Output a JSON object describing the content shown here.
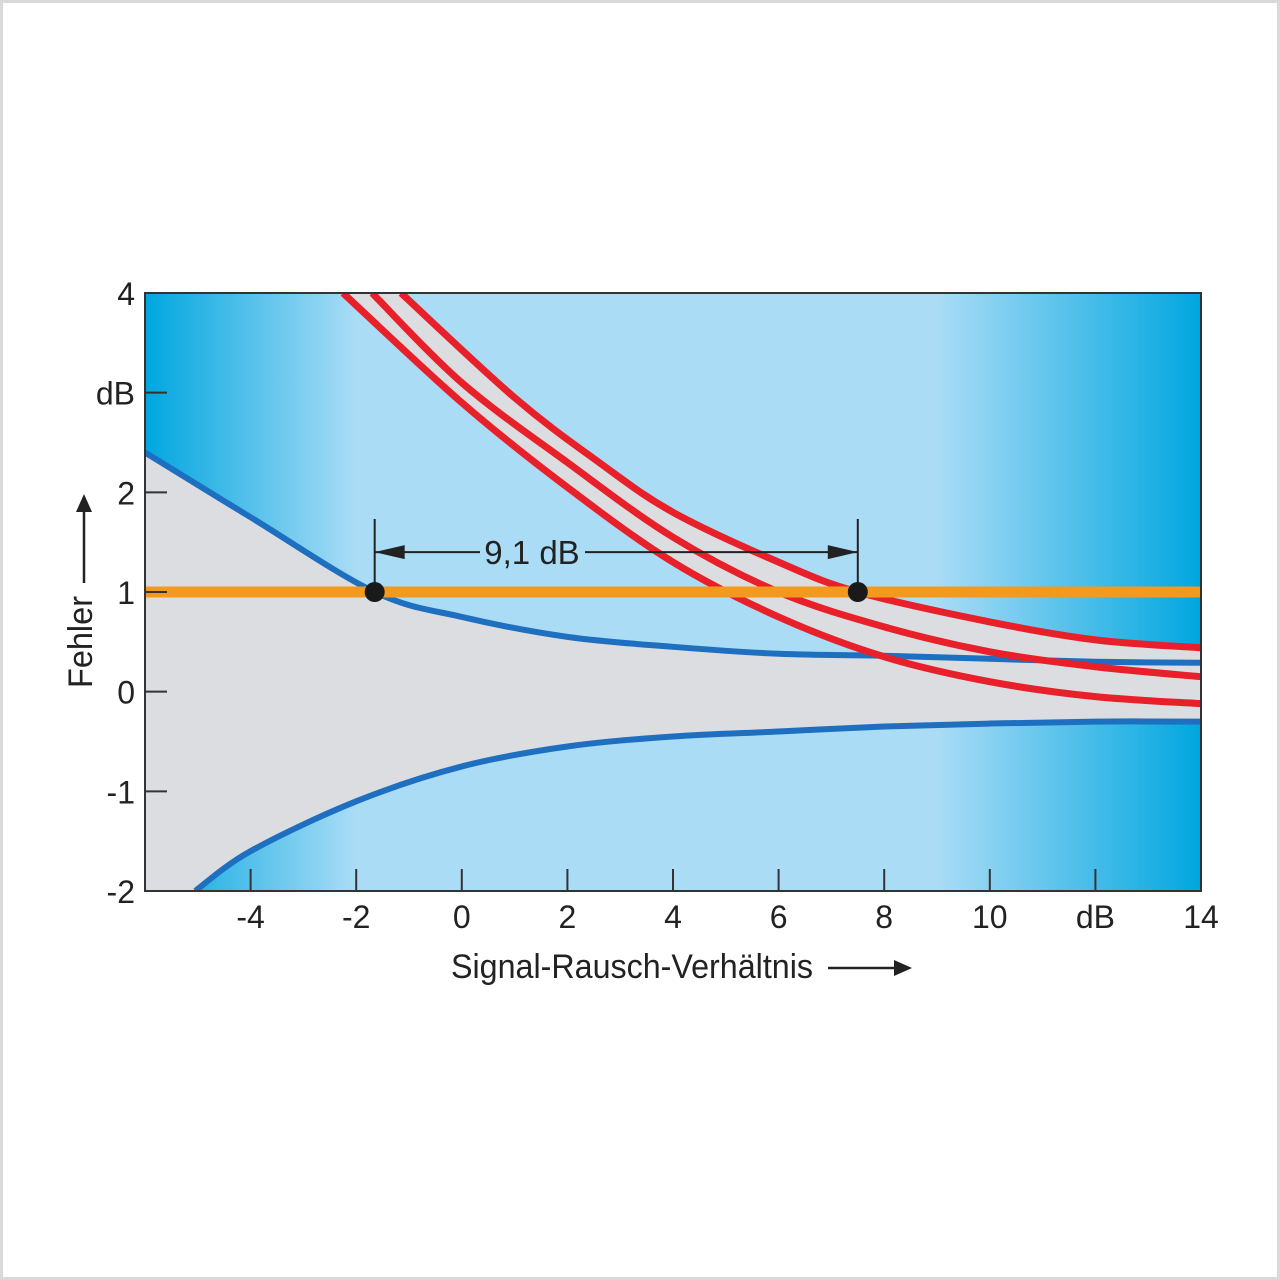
{
  "chart_data": {
    "type": "line",
    "title": "",
    "xlabel": "Signal-Rausch-Verhältnis",
    "ylabel": "Fehler",
    "xlim": [
      -6,
      14
    ],
    "ylim": [
      -2,
      4
    ],
    "x_ticks": [
      {
        "value": -4,
        "label": "-4"
      },
      {
        "value": -2,
        "label": "-2"
      },
      {
        "value": 0,
        "label": "0"
      },
      {
        "value": 2,
        "label": "2"
      },
      {
        "value": 4,
        "label": "4"
      },
      {
        "value": 6,
        "label": "6"
      },
      {
        "value": 8,
        "label": "8"
      },
      {
        "value": 10,
        "label": "10"
      },
      {
        "value": 12,
        "label": "dB"
      },
      {
        "value": 14,
        "label": "14"
      }
    ],
    "y_ticks": [
      {
        "value": 4,
        "label": "4"
      },
      {
        "value": 3,
        "label": "dB"
      },
      {
        "value": 2,
        "label": "2"
      },
      {
        "value": 1,
        "label": "1"
      },
      {
        "value": 0,
        "label": "0"
      },
      {
        "value": -1,
        "label": "-1"
      },
      {
        "value": -2,
        "label": "-2"
      }
    ],
    "grid": false,
    "colors": {
      "background_edge": "#00a6df",
      "background_center": "#aadcf6",
      "band": "#dcdde0",
      "blue": "#1f6fc0",
      "red": "#e8202a",
      "orange": "#f39a1e",
      "marker": "#1a1a1a"
    },
    "series": [
      {
        "role": "blue-upper",
        "color": "#1f6fc0",
        "points": [
          [
            -6,
            2.4
          ],
          [
            -4,
            1.75
          ],
          [
            -1.65,
            1.0
          ],
          [
            0,
            0.75
          ],
          [
            2,
            0.55
          ],
          [
            4,
            0.45
          ],
          [
            6,
            0.38
          ],
          [
            8,
            0.36
          ],
          [
            10,
            0.33
          ],
          [
            12,
            0.3
          ],
          [
            14,
            0.29
          ]
        ]
      },
      {
        "role": "blue-lower",
        "color": "#1f6fc0",
        "points": [
          [
            -5.05,
            -2.0
          ],
          [
            -4,
            -1.6
          ],
          [
            -2,
            -1.1
          ],
          [
            0,
            -0.75
          ],
          [
            2,
            -0.55
          ],
          [
            4,
            -0.45
          ],
          [
            6,
            -0.4
          ],
          [
            8,
            -0.35
          ],
          [
            10,
            -0.32
          ],
          [
            12,
            -0.3
          ],
          [
            14,
            -0.3
          ]
        ]
      },
      {
        "role": "red-upper",
        "color": "#e8202a",
        "points": [
          [
            -1.15,
            4
          ],
          [
            1,
            2.95
          ],
          [
            2.6,
            2.3
          ],
          [
            4,
            1.8
          ],
          [
            6,
            1.3
          ],
          [
            7.5,
            1.0
          ],
          [
            10,
            0.7
          ],
          [
            12,
            0.52
          ],
          [
            14,
            0.44
          ]
        ]
      },
      {
        "role": "red-middle",
        "color": "#e8202a",
        "points": [
          [
            -1.7,
            4
          ],
          [
            0,
            3.1
          ],
          [
            2,
            2.3
          ],
          [
            4,
            1.55
          ],
          [
            6,
            1.0
          ],
          [
            8,
            0.65
          ],
          [
            10,
            0.4
          ],
          [
            12,
            0.25
          ],
          [
            14,
            0.15
          ]
        ]
      },
      {
        "role": "red-lower",
        "color": "#e8202a",
        "points": [
          [
            -2.25,
            4
          ],
          [
            0,
            2.9
          ],
          [
            2,
            2.05
          ],
          [
            4,
            1.3
          ],
          [
            6,
            0.75
          ],
          [
            8,
            0.35
          ],
          [
            10,
            0.1
          ],
          [
            12,
            -0.05
          ],
          [
            14,
            -0.12
          ]
        ]
      },
      {
        "role": "threshold",
        "color": "#f39a1e",
        "points": [
          [
            -6,
            1
          ],
          [
            14,
            1
          ]
        ]
      }
    ],
    "markers": [
      [
        -1.65,
        1
      ],
      [
        7.5,
        1
      ]
    ],
    "annotations": [
      {
        "text": "9,1 dB",
        "from": -1.65,
        "to": 7.5,
        "y": 1.4
      }
    ]
  }
}
